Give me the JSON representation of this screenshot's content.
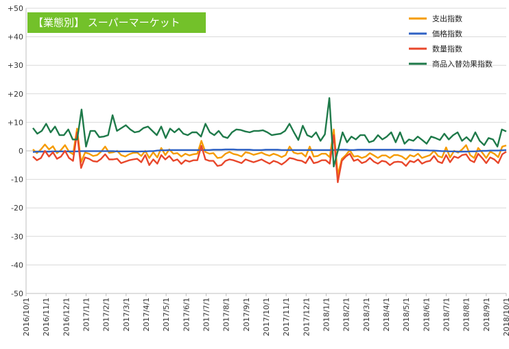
{
  "chart_data": {
    "type": "line",
    "title": "【業態別】 スーパーマーケット",
    "xlabel": "",
    "ylabel": "",
    "ylim": [
      -50,
      50
    ],
    "ytick_labels": [
      "+50",
      "+40",
      "+30",
      "+20",
      "+10",
      "0",
      "-10",
      "-20",
      "-30",
      "-40",
      "-50"
    ],
    "ytick_values": [
      50,
      40,
      30,
      20,
      10,
      0,
      -10,
      -20,
      -30,
      -40,
      -50
    ],
    "x_tick_labels": [
      "2016/10/1",
      "2016/11/1",
      "2016/12/1",
      "2017/1/1",
      "2017/2/1",
      "2017/3/1",
      "2017/4/1",
      "2017/5/1",
      "2017/6/1",
      "2017/7/1",
      "2017/8/1",
      "2017/9/1",
      "2017/10/1",
      "2017/11/1",
      "2017/12/1",
      "2018/1/1",
      "2018/2/1",
      "2018/3/1",
      "2018/4/1",
      "2018/5/1",
      "2018/6/1",
      "2018/7/1",
      "2018/8/1",
      "2018/9/1",
      "2018/10/1"
    ],
    "points_per_month": 4.3,
    "grid": "horizontal",
    "legend_position": "top-right",
    "series": [
      {
        "name": "支出指数",
        "color": "#f59b00",
        "values": [
          0.5,
          -0.8,
          0.5,
          2.2,
          0.5,
          1.6,
          -0.8,
          0.3,
          2.0,
          -0.3,
          -1.2,
          7.8,
          -4.0,
          -0.6,
          -1.0,
          -1.8,
          -1.5,
          -0.3,
          1.5,
          -0.7,
          -0.5,
          0,
          -1.5,
          -2.0,
          -1.2,
          -0.7,
          -0.6,
          -1.8,
          0,
          -2.5,
          -0.5,
          -2.3,
          1.0,
          -1.5,
          0.5,
          -1.0,
          -0.8,
          -2.0,
          -1.0,
          -1.6,
          -1.2,
          -1.0,
          3.5,
          -0.4,
          -1.0,
          -0.8,
          -2.5,
          -2.3,
          -1.0,
          -0.4,
          -1.1,
          -1.4,
          -2.0,
          -0.5,
          -0.8,
          -1.4,
          -1.0,
          -0.6,
          -1.3,
          -1.7,
          -1.0,
          -1.5,
          -2.2,
          -1.5,
          1.5,
          -0.6,
          -1.0,
          -0.8,
          -2.0,
          1.5,
          -2.0,
          -1.8,
          -1.0,
          -1.0,
          -2.2,
          7.5,
          -8.5,
          -2.8,
          -1.5,
          0.2,
          -2.0,
          -1.8,
          -2.5,
          -2.0,
          -0.8,
          -1.6,
          -2.5,
          -1.6,
          -1.6,
          -2.5,
          -1.5,
          -1.5,
          -2.0,
          -3.0,
          -1.5,
          -2.0,
          -1.0,
          -2.5,
          -2.0,
          -1.5,
          0,
          -1.8,
          -2.3,
          1.2,
          -2.3,
          0,
          -0.6,
          0.5,
          2.0,
          -1.5,
          -2.5,
          1.0,
          -0.6,
          -2.5,
          -0.3,
          -1.0,
          -2.2,
          1.5,
          1.9
        ]
      },
      {
        "name": "価格指数",
        "color": "#2e61c4",
        "values": [
          -0.4,
          -0.3,
          -0.3,
          -0.3,
          -0.3,
          -0.2,
          -0.2,
          -0.2,
          -0.2,
          -0.2,
          -0.2,
          -0.2,
          -0.1,
          -0.1,
          -0.1,
          -0.1,
          -0.1,
          -0.1,
          -0.1,
          -0.1,
          -0.1,
          -0.2,
          -0.2,
          -0.2,
          -0.2,
          -0.2,
          -0.3,
          -0.2,
          -0.2,
          -0.1,
          -0.1,
          0.1,
          0.2,
          0.2,
          0.3,
          0.3,
          0.3,
          0.3,
          0.3,
          0.3,
          0.3,
          0.3,
          0.3,
          0.3,
          0.3,
          0.4,
          0.4,
          0.4,
          0.5,
          0.5,
          0.5,
          0.4,
          0.4,
          0.4,
          0.4,
          0.3,
          0.3,
          0.3,
          0.4,
          0.4,
          0.4,
          0.4,
          0.3,
          0.3,
          0.3,
          0.3,
          0.3,
          0.3,
          0.3,
          0.3,
          0.3,
          0.3,
          0.3,
          0.3,
          0.3,
          0.3,
          0.4,
          0.4,
          0.4,
          0.3,
          0.3,
          0.4,
          0.4,
          0.4,
          0.4,
          0.4,
          0.4,
          0.4,
          0.4,
          0.4,
          0.4,
          0.4,
          0.4,
          0.4,
          0.4,
          0.3,
          0.3,
          0.2,
          0.2,
          0.1,
          0.1,
          0,
          -0.1,
          -0.1,
          -0.2,
          -0.2,
          -0.3,
          -0.3,
          -0.3,
          -0.2,
          -0.2,
          -0.1,
          0,
          0,
          0.1,
          0.1,
          0.1,
          0.2,
          0.3
        ]
      },
      {
        "name": "数量指数",
        "color": "#e8472b",
        "values": [
          -2.0,
          -3.3,
          -2.5,
          0.0,
          -2.0,
          -0.5,
          -2.8,
          -2.0,
          0,
          -2.5,
          -3.5,
          6.5,
          -6.0,
          -2.3,
          -2.8,
          -3.6,
          -3.8,
          -2.8,
          -1.2,
          -3.0,
          -3.0,
          -2.8,
          -4.3,
          -3.8,
          -3.3,
          -3.0,
          -2.8,
          -4.0,
          -1.5,
          -5.0,
          -3.0,
          -4.5,
          -1.5,
          -3.0,
          -1.8,
          -3.5,
          -3.0,
          -4.6,
          -3.3,
          -3.8,
          -3.3,
          -3.3,
          1.8,
          -3.0,
          -3.5,
          -3.5,
          -5.3,
          -5.0,
          -3.5,
          -3.0,
          -3.3,
          -3.8,
          -4.3,
          -3.0,
          -3.5,
          -4.0,
          -3.5,
          -3.0,
          -3.8,
          -4.5,
          -3.5,
          -4.0,
          -4.8,
          -3.8,
          -2.5,
          -2.8,
          -3.3,
          -3.5,
          -4.3,
          -2.0,
          -4.3,
          -4.0,
          -3.3,
          -3.3,
          -4.5,
          5.5,
          -11.0,
          -3.5,
          -2.0,
          -1.0,
          -3.5,
          -3.0,
          -4.3,
          -3.8,
          -2.5,
          -3.8,
          -4.5,
          -3.5,
          -3.8,
          -5.0,
          -4.0,
          -3.8,
          -4.0,
          -5.3,
          -3.5,
          -4.0,
          -3.0,
          -4.5,
          -3.8,
          -3.5,
          -1.8,
          -3.8,
          -4.3,
          -1.5,
          -4.0,
          -2.0,
          -2.5,
          -1.5,
          -1.2,
          -3.3,
          -4.0,
          -1.0,
          -2.5,
          -4.3,
          -2.3,
          -3.0,
          -4.3,
          -1.2,
          -0.3
        ]
      },
      {
        "name": "商品入替効果指数",
        "color": "#1f7a4a",
        "values": [
          8.0,
          6.0,
          7.0,
          9.5,
          6.5,
          8.5,
          5.5,
          5.5,
          7.5,
          4.0,
          4.0,
          14.5,
          1.5,
          7.0,
          7.0,
          4.8,
          5.0,
          5.5,
          12.5,
          7.0,
          8.0,
          9.0,
          7.5,
          6.5,
          6.8,
          8.0,
          8.5,
          7.0,
          5.5,
          8.5,
          4.5,
          7.8,
          6.5,
          7.8,
          6.0,
          5.5,
          6.5,
          6.5,
          5.0,
          9.5,
          6.5,
          5.5,
          7.0,
          5.0,
          4.5,
          6.5,
          7.5,
          7.3,
          6.8,
          6.5,
          7.0,
          7.0,
          7.2,
          6.5,
          5.5,
          5.8,
          6.0,
          7.0,
          9.5,
          6.5,
          3.8,
          8.8,
          5.5,
          4.8,
          6.5,
          3.5,
          5.8,
          18.5,
          -5.5,
          0.5,
          6.5,
          3.0,
          5.0,
          4.0,
          5.5,
          5.5,
          3.0,
          3.5,
          5.5,
          4.0,
          5.0,
          6.5,
          3.0,
          6.5,
          2.5,
          4.0,
          3.5,
          5.0,
          3.8,
          2.5,
          5.0,
          4.5,
          3.8,
          6.0,
          4.0,
          5.5,
          6.5,
          3.5,
          4.8,
          3.3,
          6.5,
          3.5,
          2.0,
          4.5,
          4.0,
          1.5,
          7.5,
          6.8
        ]
      }
    ]
  }
}
